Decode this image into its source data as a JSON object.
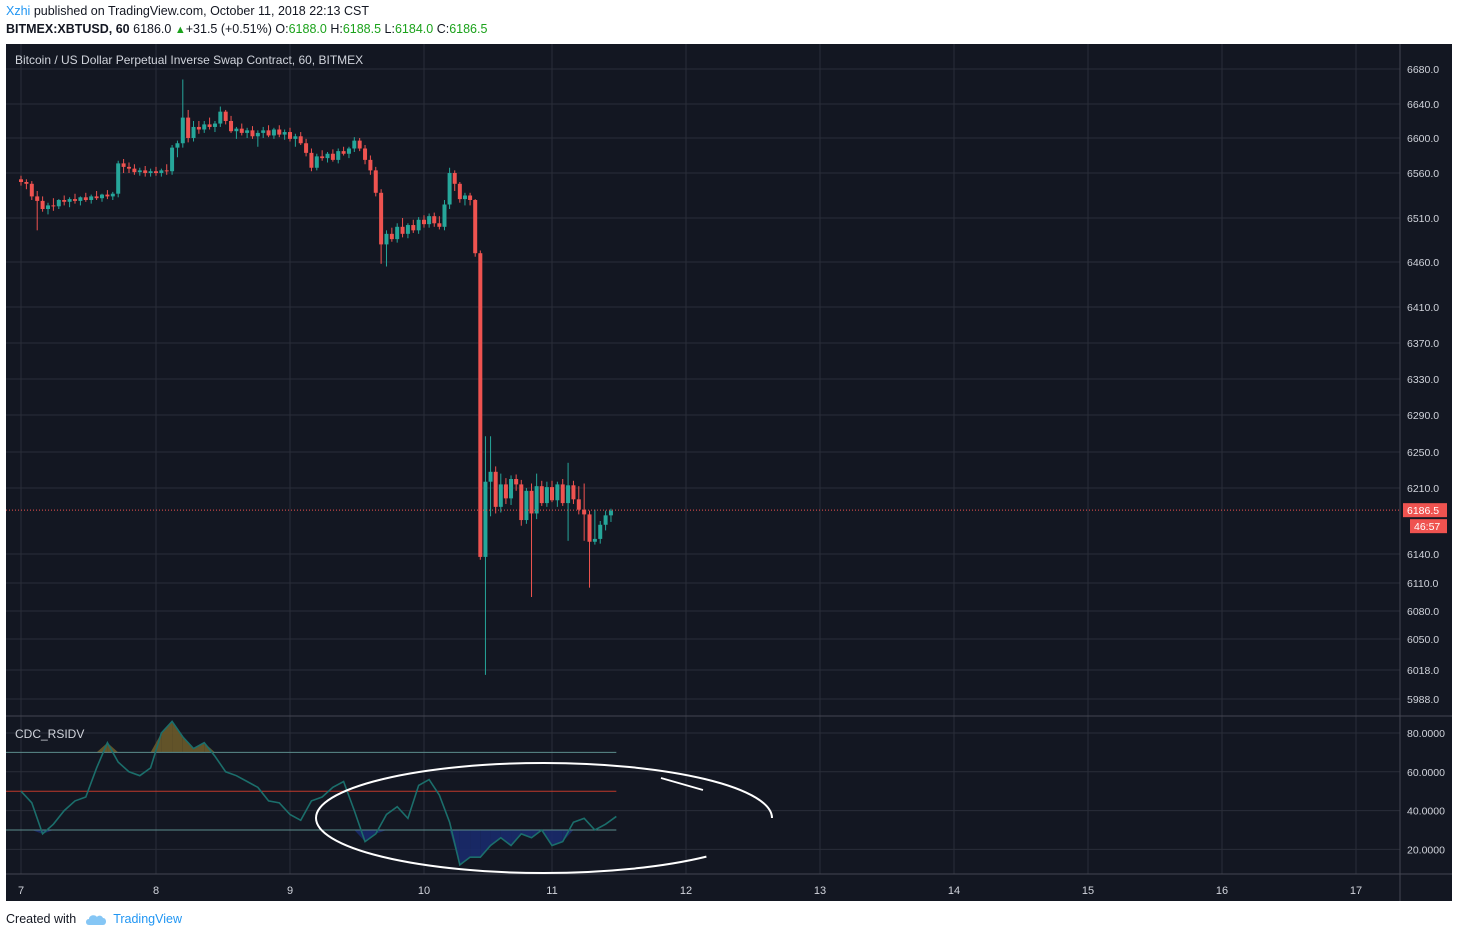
{
  "header": {
    "author": "Xzhi",
    "published_text": "published on TradingView.com, October 11, 2018 22:13 CST",
    "symbol": "BITMEX:XBTUSD, 60",
    "price": "6186.0",
    "change": "+31.5 (+0.51%)",
    "o_label": "O:",
    "o_val": "6188.0",
    "h_label": "H:",
    "h_val": "6188.5",
    "l_label": "L:",
    "l_val": "6184.0",
    "c_label": "C:",
    "c_val": "6186.5"
  },
  "footer": {
    "created_label": "Created with",
    "brand": "TradingView"
  },
  "colors": {
    "background": "#131722",
    "grid": "#2a2e39",
    "up": "#26a69a",
    "down": "#ef5350",
    "text": "#d1d4dc",
    "rsi_line": "#1b6e6b",
    "oversold_fill": "#1a2a6c",
    "overbought_fill": "#6b5a2a"
  },
  "chart_data": {
    "type": "candlestick",
    "title": "Bitcoin / US Dollar Perpetual Inverse Swap Contract, 60, BITMEX",
    "y_ticks": [
      "6680.0",
      "6640.0",
      "6600.0",
      "6560.0",
      "6510.0",
      "6460.0",
      "6410.0",
      "6370.0",
      "6330.0",
      "6290.0",
      "6250.0",
      "6210.0",
      "6140.0",
      "6110.0",
      "6080.0",
      "6050.0",
      "6018.0",
      "5988.0"
    ],
    "x_ticks": [
      "7",
      "8",
      "9",
      "10",
      "11",
      "12",
      "13",
      "14",
      "15",
      "16",
      "17"
    ],
    "last_price_label": "6186.5",
    "countdown_label": "46:57",
    "last_price": 6186.5,
    "candles": [
      [
        7.0,
        6553,
        6557,
        6546,
        6550
      ],
      [
        7.04,
        6550,
        6553,
        6542,
        6548
      ],
      [
        7.08,
        6548,
        6551,
        6530,
        6534
      ],
      [
        7.12,
        6534,
        6540,
        6496,
        6529
      ],
      [
        7.16,
        6529,
        6534,
        6517,
        6520
      ],
      [
        7.2,
        6520,
        6527,
        6514,
        6524
      ],
      [
        7.24,
        6524,
        6532,
        6518,
        6523
      ],
      [
        7.28,
        6523,
        6531,
        6520,
        6530
      ],
      [
        7.32,
        6530,
        6535,
        6524,
        6528
      ],
      [
        7.36,
        6528,
        6533,
        6522,
        6531
      ],
      [
        7.4,
        6531,
        6537,
        6526,
        6529
      ],
      [
        7.44,
        6529,
        6534,
        6524,
        6533
      ],
      [
        7.48,
        6533,
        6538,
        6528,
        6530
      ],
      [
        7.52,
        6530,
        6536,
        6526,
        6534
      ],
      [
        7.56,
        6534,
        6540,
        6530,
        6532
      ],
      [
        7.6,
        6532,
        6537,
        6528,
        6536
      ],
      [
        7.64,
        6536,
        6541,
        6531,
        6534
      ],
      [
        7.68,
        6534,
        6539,
        6530,
        6537
      ],
      [
        7.72,
        6537,
        6574,
        6533,
        6571
      ],
      [
        7.76,
        6571,
        6576,
        6560,
        6567
      ],
      [
        7.8,
        6567,
        6572,
        6560,
        6565
      ],
      [
        7.84,
        6565,
        6570,
        6558,
        6561
      ],
      [
        7.88,
        6561,
        6566,
        6557,
        6563
      ],
      [
        7.92,
        6563,
        6568,
        6556,
        6560
      ],
      [
        7.96,
        6560,
        6565,
        6556,
        6562
      ],
      [
        8.0,
        6562,
        6567,
        6557,
        6560
      ],
      [
        8.04,
        6560,
        6565,
        6556,
        6563
      ],
      [
        8.08,
        6563,
        6570,
        6558,
        6562
      ],
      [
        8.12,
        6562,
        6592,
        6558,
        6589
      ],
      [
        8.16,
        6589,
        6597,
        6578,
        6594
      ],
      [
        8.2,
        6594,
        6668,
        6589,
        6624
      ],
      [
        8.24,
        6624,
        6633,
        6595,
        6600
      ],
      [
        8.28,
        6600,
        6620,
        6596,
        6613
      ],
      [
        8.32,
        6613,
        6620,
        6605,
        6610
      ],
      [
        8.36,
        6610,
        6620,
        6606,
        6616
      ],
      [
        8.4,
        6616,
        6624,
        6610,
        6613
      ],
      [
        8.44,
        6613,
        6620,
        6607,
        6617
      ],
      [
        8.48,
        6617,
        6637,
        6613,
        6631
      ],
      [
        8.52,
        6631,
        6633,
        6616,
        6620
      ],
      [
        8.56,
        6620,
        6626,
        6606,
        6608
      ],
      [
        8.6,
        6608,
        6613,
        6599,
        6611
      ],
      [
        8.64,
        6611,
        6617,
        6603,
        6606
      ],
      [
        8.68,
        6606,
        6612,
        6600,
        6609
      ],
      [
        8.72,
        6609,
        6614,
        6599,
        6602
      ],
      [
        8.76,
        6602,
        6609,
        6590,
        6606
      ],
      [
        8.8,
        6606,
        6613,
        6600,
        6609
      ],
      [
        8.84,
        6609,
        6615,
        6601,
        6603
      ],
      [
        8.88,
        6603,
        6612,
        6599,
        6610
      ],
      [
        8.92,
        6610,
        6615,
        6601,
        6604
      ],
      [
        8.96,
        6604,
        6610,
        6598,
        6607
      ],
      [
        9.0,
        6607,
        6612,
        6596,
        6599
      ],
      [
        9.04,
        6599,
        6605,
        6590,
        6602
      ],
      [
        9.08,
        6602,
        6607,
        6592,
        6594
      ],
      [
        9.12,
        6594,
        6599,
        6579,
        6583
      ],
      [
        9.16,
        6583,
        6588,
        6562,
        6566
      ],
      [
        9.2,
        6566,
        6582,
        6563,
        6579
      ],
      [
        9.24,
        6579,
        6586,
        6574,
        6577
      ],
      [
        9.28,
        6577,
        6584,
        6572,
        6582
      ],
      [
        9.32,
        6582,
        6587,
        6573,
        6575
      ],
      [
        9.36,
        6575,
        6588,
        6571,
        6585
      ],
      [
        9.4,
        6585,
        6590,
        6580,
        6582
      ],
      [
        9.44,
        6582,
        6590,
        6577,
        6588
      ],
      [
        9.48,
        6588,
        6601,
        6584,
        6597
      ],
      [
        9.52,
        6597,
        6600,
        6585,
        6588
      ],
      [
        9.56,
        6588,
        6592,
        6570,
        6575
      ],
      [
        9.6,
        6575,
        6580,
        6558,
        6563
      ],
      [
        9.64,
        6563,
        6567,
        6534,
        6538
      ],
      [
        9.68,
        6538,
        6542,
        6458,
        6480
      ],
      [
        9.72,
        6480,
        6496,
        6455,
        6492
      ],
      [
        9.76,
        6492,
        6499,
        6483,
        6486
      ],
      [
        9.8,
        6486,
        6504,
        6482,
        6500
      ],
      [
        9.84,
        6500,
        6510,
        6488,
        6492
      ],
      [
        9.88,
        6492,
        6504,
        6487,
        6502
      ],
      [
        9.92,
        6502,
        6508,
        6493,
        6496
      ],
      [
        9.96,
        6496,
        6511,
        6492,
        6508
      ],
      [
        10.0,
        6508,
        6513,
        6499,
        6503
      ],
      [
        10.04,
        6503,
        6515,
        6499,
        6512
      ],
      [
        10.08,
        6512,
        6516,
        6500,
        6504
      ],
      [
        10.12,
        6504,
        6512,
        6497,
        6500
      ],
      [
        10.16,
        6500,
        6530,
        6496,
        6525
      ],
      [
        10.2,
        6525,
        6566,
        6520,
        6560
      ],
      [
        10.24,
        6560,
        6563,
        6540,
        6548
      ],
      [
        10.28,
        6548,
        6550,
        6527,
        6531
      ],
      [
        10.32,
        6531,
        6538,
        6524,
        6535
      ],
      [
        10.36,
        6535,
        6538,
        6524,
        6530
      ],
      [
        10.4,
        6530,
        6531,
        6466,
        6470
      ],
      [
        10.44,
        6470,
        6473,
        6134,
        6137
      ],
      [
        10.48,
        6137,
        6267,
        6013,
        6217
      ],
      [
        10.52,
        6217,
        6267,
        6180,
        6228
      ],
      [
        10.56,
        6228,
        6234,
        6183,
        6190
      ],
      [
        10.6,
        6190,
        6226,
        6184,
        6214
      ],
      [
        10.64,
        6214,
        6221,
        6193,
        6199
      ],
      [
        10.68,
        6199,
        6224,
        6192,
        6220
      ],
      [
        10.72,
        6220,
        6225,
        6207,
        6214
      ],
      [
        10.76,
        6214,
        6219,
        6170,
        6176
      ],
      [
        10.8,
        6176,
        6210,
        6172,
        6207
      ],
      [
        10.84,
        6207,
        6215,
        6095,
        6183
      ],
      [
        10.88,
        6183,
        6226,
        6177,
        6212
      ],
      [
        10.92,
        6212,
        6218,
        6191,
        6194
      ],
      [
        10.96,
        6194,
        6217,
        6190,
        6211
      ],
      [
        11.0,
        6211,
        6218,
        6195,
        6197
      ],
      [
        11.04,
        6197,
        6217,
        6190,
        6214
      ],
      [
        11.08,
        6214,
        6220,
        6191,
        6194
      ],
      [
        11.12,
        6194,
        6238,
        6154,
        6213
      ],
      [
        11.16,
        6213,
        6218,
        6193,
        6198
      ],
      [
        11.2,
        6198,
        6212,
        6182,
        6187
      ],
      [
        11.24,
        6187,
        6215,
        6154,
        6182
      ],
      [
        11.28,
        6182,
        6186,
        6105,
        6153
      ],
      [
        11.32,
        6153,
        6187,
        6150,
        6156
      ],
      [
        11.36,
        6156,
        6175,
        6151,
        6171
      ],
      [
        11.4,
        6171,
        6186,
        6165,
        6181
      ],
      [
        11.44,
        6181,
        6188,
        6174,
        6186
      ]
    ],
    "indicator": {
      "name": "CDC_RSIDV",
      "y_ticks": [
        "80.0000",
        "60.0000",
        "40.0000",
        "20.0000"
      ],
      "levels": {
        "upper": 70,
        "middle": 50,
        "lower": 30
      },
      "x": [
        7.0,
        7.08,
        7.16,
        7.24,
        7.32,
        7.4,
        7.48,
        7.56,
        7.64,
        7.72,
        7.8,
        7.88,
        7.96,
        8.04,
        8.12,
        8.2,
        8.28,
        8.36,
        8.44,
        8.52,
        8.6,
        8.68,
        8.76,
        8.84,
        8.92,
        9.0,
        9.08,
        9.16,
        9.24,
        9.32,
        9.4,
        9.48,
        9.56,
        9.64,
        9.72,
        9.8,
        9.88,
        9.96,
        10.04,
        10.12,
        10.2,
        10.28,
        10.36,
        10.44,
        10.52,
        10.6,
        10.68,
        10.76,
        10.84,
        10.92,
        11.0,
        11.08,
        11.16,
        11.24,
        11.32,
        11.4,
        11.48
      ],
      "values": [
        50,
        44,
        28,
        33,
        40,
        45,
        47,
        62,
        75,
        65,
        60,
        58,
        62,
        80,
        86,
        78,
        72,
        75,
        68,
        60,
        58,
        55,
        52,
        45,
        44,
        38,
        35,
        45,
        47,
        52,
        55,
        40,
        24,
        28,
        38,
        42,
        36,
        53,
        56,
        48,
        34,
        12,
        16,
        16,
        22,
        26,
        22,
        28,
        26,
        30,
        22,
        24,
        34,
        36,
        30,
        33,
        37
      ]
    }
  }
}
